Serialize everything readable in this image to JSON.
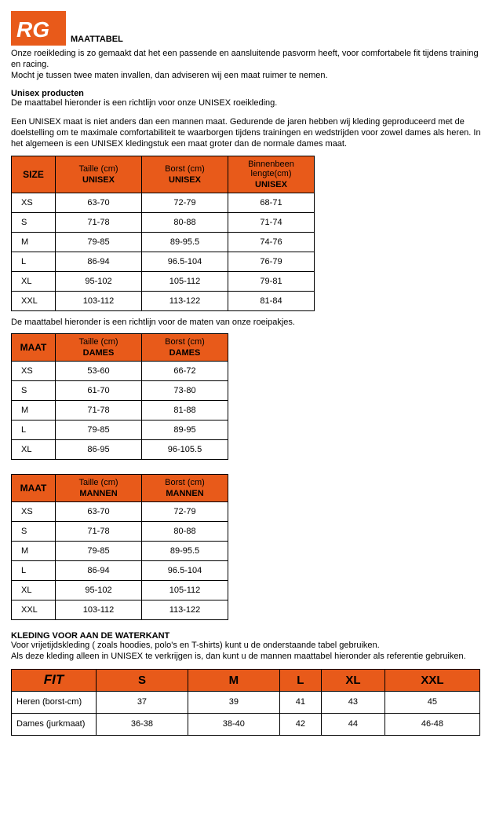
{
  "colors": {
    "accent": "#e85a1a",
    "text": "#000000",
    "bg": "#ffffff",
    "border": "#000000"
  },
  "logo_text": "RG",
  "title": "MAATTABEL",
  "intro": {
    "p1": "Onze roeikleding is zo gemaakt dat het een passende en aansluitende pasvorm heeft, voor comfortabele fit tijdens  training en racing.",
    "p2": "Mocht je tussen twee maten invallen, dan adviseren wij een maat ruimer te nemen."
  },
  "section1": {
    "heading": "Unisex producten",
    "p1": "De maattabel hieronder is een richtlijn voor onze UNISEX roeikleding.",
    "p2": "Een UNISEX maat is niet anders dan een mannen maat. Gedurende de jaren hebben wij kleding geproduceerd met de doelstelling om te maximale comfortabiliteit te waarborgen tijdens trainingen en wedstrijden voor zowel dames als heren. In het algemeen is een UNISEX kledingstuk een maat groter dan de normale dames maat."
  },
  "table1": {
    "headers": {
      "size": "SIZE",
      "col2_top": "Taille (cm)",
      "col2_bot": "UNISEX",
      "col3_top": "Borst (cm)",
      "col3_bot": "UNISEX",
      "col4_top": "Binnenbeen lengte(cm)",
      "col4_bot": "UNISEX"
    },
    "rows": [
      {
        "s": "XS",
        "a": "63-70",
        "b": "72-79",
        "c": "68-71"
      },
      {
        "s": "S",
        "a": "71-78",
        "b": "80-88",
        "c": "71-74"
      },
      {
        "s": "M",
        "a": "79-85",
        "b": "89-95.5",
        "c": "74-76"
      },
      {
        "s": "L",
        "a": "86-94",
        "b": "96.5-104",
        "c": "76-79"
      },
      {
        "s": "XL",
        "a": "95-102",
        "b": "105-112",
        "c": "79-81"
      },
      {
        "s": "XXL",
        "a": "103-112",
        "b": "113-122",
        "c": "81-84"
      }
    ]
  },
  "caption2": "De maattabel hieronder is een richtlijn voor de maten van onze roeipakjes.",
  "table2": {
    "headers": {
      "size": "MAAT",
      "col2_top": "Taille (cm)",
      "col2_bot": "DAMES",
      "col3_top": "Borst (cm)",
      "col3_bot": "DAMES"
    },
    "rows": [
      {
        "s": "XS",
        "a": "53-60",
        "b": "66-72"
      },
      {
        "s": "S",
        "a": "61-70",
        "b": "73-80"
      },
      {
        "s": "M",
        "a": "71-78",
        "b": "81-88"
      },
      {
        "s": "L",
        "a": "79-85",
        "b": "89-95"
      },
      {
        "s": "XL",
        "a": "86-95",
        "b": "96-105.5"
      }
    ]
  },
  "table3": {
    "headers": {
      "size": "MAAT",
      "col2_top": "Taille (cm)",
      "col2_bot": "MANNEN",
      "col3_top": "Borst (cm)",
      "col3_bot": "MANNEN"
    },
    "rows": [
      {
        "s": "XS",
        "a": "63-70",
        "b": "72-79"
      },
      {
        "s": "S",
        "a": "71-78",
        "b": "80-88"
      },
      {
        "s": "M",
        "a": "79-85",
        "b": "89-95.5"
      },
      {
        "s": "L",
        "a": "86-94",
        "b": "96.5-104"
      },
      {
        "s": "XL",
        "a": "95-102",
        "b": "105-112"
      },
      {
        "s": "XXL",
        "a": "103-112",
        "b": "113-122"
      }
    ]
  },
  "section2": {
    "heading": "KLEDING VOOR AAN DE WATERKANT",
    "p1": "Voor vrijetijdskleding ( zoals hoodies, polo's en T-shirts) kunt u de onderstaande tabel gebruiken.",
    "p2": "Als deze kleding alleen in UNISEX te verkrijgen is, dan kunt u de mannen maattabel hieronder als referentie gebruiken."
  },
  "table4": {
    "headers": [
      "FIT",
      "S",
      "M",
      "L",
      "XL",
      "XXL"
    ],
    "rows": [
      {
        "label": "Heren (borst-cm)",
        "v": [
          "37",
          "39",
          "41",
          "43",
          "45"
        ]
      },
      {
        "label": "Dames (jurkmaat)",
        "v": [
          "36-38",
          "38-40",
          "42",
          "44",
          "46-48"
        ]
      }
    ]
  }
}
